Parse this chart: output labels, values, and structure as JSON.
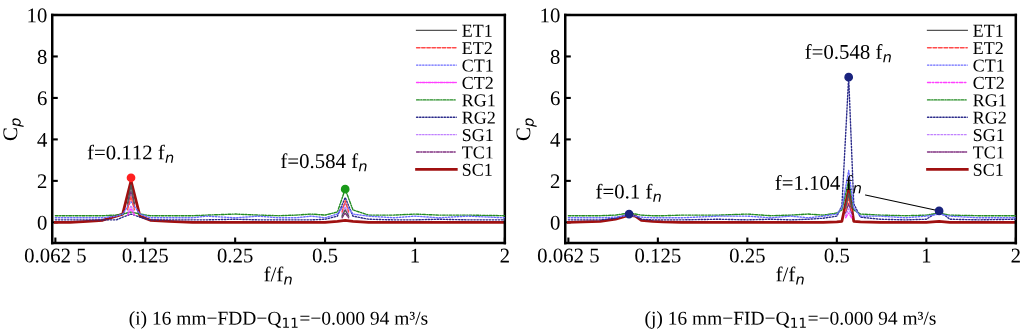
{
  "chart_data": [
    {
      "type": "line",
      "title": "(i) 16 mm−FDD−Q$_{11}$=−0.000 94 m³/s",
      "xlabel": "f/f$_{n}$",
      "ylabel": "C$_{p}$",
      "log": "x",
      "xlim": [
        0.061,
        2
      ],
      "xticks": [
        {
          "value": 0.0625,
          "label": "0.062 5"
        },
        0.125,
        0.25,
        0.5,
        1,
        2
      ],
      "ylim": [
        -1,
        10
      ],
      "yticks": [
        0,
        2,
        4,
        6,
        8,
        10
      ],
      "grid": false,
      "legend": "top right",
      "x": [
        0.0625,
        0.07,
        0.08,
        0.09,
        0.1,
        0.105,
        0.112,
        0.12,
        0.13,
        0.15,
        0.18,
        0.2,
        0.25,
        0.3,
        0.35,
        0.4,
        0.45,
        0.5,
        0.55,
        0.584,
        0.62,
        0.7,
        0.85,
        1,
        1.2,
        1.5,
        2
      ],
      "annotations": [
        {
          "text": "f=0.112 f$_{n}$",
          "x": 0.112,
          "y": 2.15
        },
        {
          "text": "f=0.584 f$_{n}$",
          "x": 0.584,
          "y": 1.6
        }
      ],
      "series": [
        {
          "name": "ET1",
          "color": "#555555",
          "line_style": "solid",
          "x": [
            0.109,
            0.112,
            0.115,
            0.3,
            0.57,
            0.584,
            0.6
          ],
          "values": [
            0.9,
            1.8,
            0.9,
            null,
            0.3,
            0.6,
            0.3
          ]
        },
        {
          "name": "ET2",
          "color": "#ff4a4a",
          "line_style": "dashed",
          "x": [
            0.109,
            0.112,
            0.115,
            0.3,
            0.57,
            0.584,
            0.6
          ],
          "values": [
            0.6,
            1.25,
            0.6,
            null,
            0.5,
            1.05,
            0.5
          ]
        },
        {
          "name": "CT1",
          "color": "#6a6aff",
          "line_style": "dotted",
          "values": [
            0.22,
            0.22,
            0.22,
            0.22,
            0.3,
            0.4,
            1.0,
            0.4,
            0.22,
            0.22,
            0.22,
            0.3,
            0.22,
            0.3,
            0.22,
            0.22,
            0.3,
            0.22,
            0.4,
            0.9,
            0.4,
            0.3,
            0.22,
            0.3,
            0.22,
            0.3,
            0.22
          ]
        },
        {
          "name": "CT2",
          "color": "#ff40ff",
          "line_style": "dashdot",
          "x": [
            0.109,
            0.112,
            0.115
          ],
          "values": [
            0.35,
            0.65,
            0.35
          ]
        },
        {
          "name": "RG1",
          "color": "#228b22",
          "line_style": "dashdot",
          "values": [
            0.32,
            0.32,
            0.32,
            0.32,
            0.35,
            0.4,
            0.5,
            0.4,
            0.32,
            0.32,
            0.32,
            0.35,
            0.4,
            0.35,
            0.32,
            0.35,
            0.4,
            0.35,
            0.5,
            1.6,
            0.6,
            0.35,
            0.35,
            0.4,
            0.35,
            0.35,
            0.32
          ]
        },
        {
          "name": "RG2",
          "color": "#2a2a8a",
          "line_style": "dotted",
          "values": [
            0.12,
            0.12,
            0.12,
            0.12,
            0.12,
            0.25,
            0.4,
            0.25,
            0.12,
            0.12,
            0.12,
            0.12,
            0.15,
            0.12,
            0.12,
            0.12,
            0.12,
            0.15,
            0.3,
            1.2,
            0.3,
            0.15,
            0.12,
            0.12,
            0.15,
            0.12,
            0.12
          ]
        },
        {
          "name": "SG1",
          "color": "#c080ff",
          "line_style": "dotted",
          "x": [
            0.109,
            0.112,
            0.115,
            0.3,
            0.57,
            0.584,
            0.6
          ],
          "values": [
            0.45,
            0.8,
            0.45,
            null,
            0.4,
            0.75,
            0.4
          ]
        },
        {
          "name": "TC1",
          "color": "#803080",
          "line_style": "dashdot",
          "x": [
            0.109,
            0.112,
            0.115,
            0.3,
            0.57,
            0.584,
            0.6
          ],
          "values": [
            0.75,
            1.5,
            0.75,
            null,
            0.22,
            0.45,
            0.22
          ]
        },
        {
          "name": "SC1",
          "color": "#a01010",
          "line_style": "solid",
          "values": [
            0,
            0,
            0.05,
            0.1,
            0.3,
            0.4,
            2.0,
            0.3,
            0.1,
            0.05,
            0,
            0,
            0,
            0,
            0,
            0,
            0,
            0,
            0.05,
            0.1,
            0.05,
            0,
            0,
            0,
            0,
            0,
            0
          ]
        },
        {
          "type": "scatter",
          "x": [
            0.112,
            0.584
          ],
          "colors": [
            "#ff2020",
            "#1a9a1a"
          ],
          "values": [
            2.15,
            1.6
          ]
        }
      ]
    },
    {
      "type": "line",
      "title": "(j) 16 mm−FID−Q$_{11}$=−0.000 94 m³/s",
      "xlabel": "f/f$_{n}$",
      "ylabel": "C$_{p}$",
      "log": "x",
      "xlim": [
        0.061,
        2
      ],
      "xticks": [
        {
          "value": 0.0625,
          "label": "0.062 5"
        },
        0.125,
        0.25,
        0.5,
        1,
        2
      ],
      "ylim": [
        -1,
        10
      ],
      "yticks": [
        0,
        2,
        4,
        6,
        8,
        10
      ],
      "grid": false,
      "legend": "top right",
      "x": [
        0.0625,
        0.07,
        0.08,
        0.09,
        0.095,
        0.1,
        0.105,
        0.11,
        0.12,
        0.13,
        0.15,
        0.2,
        0.25,
        0.3,
        0.35,
        0.4,
        0.45,
        0.5,
        0.52,
        0.548,
        0.57,
        0.6,
        0.7,
        0.85,
        1,
        1.104,
        1.2,
        1.5,
        2
      ],
      "annotations": [
        {
          "text": "f=0.1 f$_{n}$",
          "x": 0.1,
          "y": 0.4
        },
        {
          "text": "f=0.548 f$_{n}$",
          "x": 0.548,
          "y": 7.0
        },
        {
          "text": "f=1.104 f$_{n}$",
          "x": 1.104,
          "y": 0.55
        }
      ],
      "series": [
        {
          "name": "ET1",
          "color": "#555555",
          "line_style": "solid",
          "x": [
            0.535,
            0.548,
            0.561
          ],
          "values": [
            0.7,
            1.4,
            0.7
          ]
        },
        {
          "name": "ET2",
          "color": "#ff4a4a",
          "line_style": "dashed",
          "x": [
            0.535,
            0.548,
            0.561
          ],
          "values": [
            0.55,
            1.15,
            0.55
          ]
        },
        {
          "name": "CT1",
          "color": "#6a6aff",
          "line_style": "dotted",
          "values": [
            0.22,
            0.22,
            0.22,
            0.25,
            0.3,
            0.35,
            0.3,
            0.25,
            0.22,
            0.22,
            0.22,
            0.3,
            0.3,
            0.22,
            0.3,
            0.22,
            0.3,
            0.4,
            0.7,
            2.5,
            0.7,
            0.3,
            0.3,
            0.22,
            0.3,
            0.4,
            0.3,
            0.22,
            0.22
          ]
        },
        {
          "name": "CT2",
          "color": "#ff40ff",
          "line_style": "dashdot",
          "x": [
            0.535,
            0.548,
            0.561
          ],
          "values": [
            0.22,
            0.45,
            0.22
          ]
        },
        {
          "name": "RG1",
          "color": "#228b22",
          "line_style": "dashdot",
          "values": [
            0.32,
            0.32,
            0.32,
            0.35,
            0.4,
            0.45,
            0.4,
            0.35,
            0.32,
            0.32,
            0.35,
            0.35,
            0.4,
            0.32,
            0.35,
            0.4,
            0.35,
            0.45,
            0.6,
            2.0,
            0.6,
            0.4,
            0.35,
            0.32,
            0.35,
            0.45,
            0.35,
            0.32,
            0.32
          ]
        },
        {
          "name": "RG2",
          "color": "#2a2a8a",
          "line_style": "dotted",
          "values": [
            0.12,
            0.12,
            0.12,
            0.2,
            0.3,
            0.4,
            0.3,
            0.15,
            0.12,
            0.12,
            0.12,
            0.15,
            0.12,
            0.15,
            0.12,
            0.15,
            0.2,
            0.3,
            0.8,
            7.0,
            0.9,
            0.25,
            0.15,
            0.12,
            0.15,
            0.55,
            0.15,
            0.12,
            0.15
          ]
        },
        {
          "name": "SG1",
          "color": "#c080ff",
          "line_style": "dotted",
          "x": [
            0.535,
            0.548,
            0.561
          ],
          "values": [
            0.32,
            0.65,
            0.32
          ]
        },
        {
          "name": "TC1",
          "color": "#803080",
          "line_style": "dashdot",
          "x": [
            0.535,
            0.548,
            0.561
          ],
          "values": [
            0.45,
            0.9,
            0.45
          ]
        },
        {
          "name": "SC1",
          "color": "#a01010",
          "line_style": "solid",
          "values": [
            0,
            0.02,
            0.05,
            0.15,
            0.25,
            0.35,
            0.3,
            0.1,
            0.05,
            0.02,
            0,
            0,
            0,
            0,
            0,
            0,
            0,
            0.02,
            0.05,
            1.6,
            0.05,
            0.02,
            0,
            0,
            0,
            0.05,
            0,
            0,
            0
          ]
        },
        {
          "type": "scatter",
          "x": [
            0.1,
            0.548,
            1.104
          ],
          "colors": [
            "#1a237e",
            "#1a237e",
            "#1a237e"
          ],
          "values": [
            0.4,
            7.0,
            0.55
          ]
        }
      ]
    }
  ]
}
